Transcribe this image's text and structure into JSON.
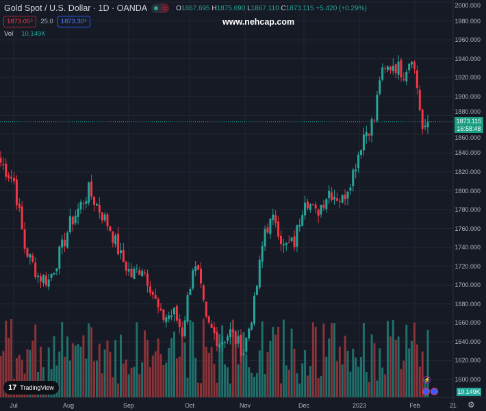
{
  "header": {
    "symbol": "Gold Spot / U.S. Dollar · 1D · OANDA",
    "open_label": "O",
    "open": "1867.695",
    "high_label": "H",
    "high": "1875.690",
    "low_label": "L",
    "low": "1867.110",
    "close_label": "C",
    "close": "1873.115",
    "change": "+5.420 (+0.29%)"
  },
  "trade": {
    "bid": "1873.05⁵",
    "spread": "25.0",
    "ask": "1873.30⁵"
  },
  "watermark": "www.nehcap.com",
  "volume": {
    "label": "Vol",
    "value": "10.149K"
  },
  "price_axis": [
    "2000.000",
    "1980.000",
    "1960.000",
    "1940.000",
    "1920.000",
    "1900.000",
    "1880.000",
    "1860.000",
    "1840.000",
    "1820.000",
    "1800.000",
    "1780.000",
    "1760.000",
    "1740.000",
    "1720.000",
    "1700.000",
    "1680.000",
    "1660.000",
    "1640.000",
    "1620.000",
    "1600.000"
  ],
  "last_price": {
    "price": "1873.115",
    "countdown": "16:58:48"
  },
  "time_axis": [
    "Jul",
    "Aug",
    "Sep",
    "Oct",
    "Nov",
    "Dec",
    "2023",
    "Feb",
    "21"
  ],
  "logo": "TradingView",
  "colors": {
    "up": "#26a69a",
    "down": "#f23645",
    "vol_up": "#1f6f6a",
    "vol_down": "#8a3338"
  },
  "chart_data": {
    "type": "candlestick",
    "series": "XAU/USD daily",
    "keypoints_day_close": [
      [
        0,
        1830
      ],
      [
        5,
        1810
      ],
      [
        9,
        1740
      ],
      [
        14,
        1710
      ],
      [
        18,
        1705
      ],
      [
        23,
        1740
      ],
      [
        26,
        1765
      ],
      [
        28,
        1775
      ],
      [
        33,
        1800
      ],
      [
        37,
        1780
      ],
      [
        41,
        1760
      ],
      [
        45,
        1730
      ],
      [
        49,
        1710
      ],
      [
        53,
        1720
      ],
      [
        56,
        1700
      ],
      [
        60,
        1665
      ],
      [
        65,
        1670
      ],
      [
        68,
        1650
      ],
      [
        72,
        1720
      ],
      [
        74,
        1710
      ],
      [
        77,
        1660
      ],
      [
        82,
        1640
      ],
      [
        86,
        1650
      ],
      [
        91,
        1630
      ],
      [
        95,
        1680
      ],
      [
        99,
        1760
      ],
      [
        103,
        1770
      ],
      [
        106,
        1740
      ],
      [
        110,
        1745
      ],
      [
        114,
        1795
      ],
      [
        118,
        1775
      ],
      [
        123,
        1800
      ],
      [
        128,
        1790
      ],
      [
        132,
        1820
      ],
      [
        136,
        1860
      ],
      [
        140,
        1875
      ],
      [
        142,
        1920
      ],
      [
        147,
        1935
      ],
      [
        151,
        1925
      ],
      [
        154,
        1945
      ],
      [
        156,
        1910
      ],
      [
        158,
        1865
      ],
      [
        160,
        1873
      ]
    ],
    "ylim": [
      1600,
      2000
    ]
  }
}
